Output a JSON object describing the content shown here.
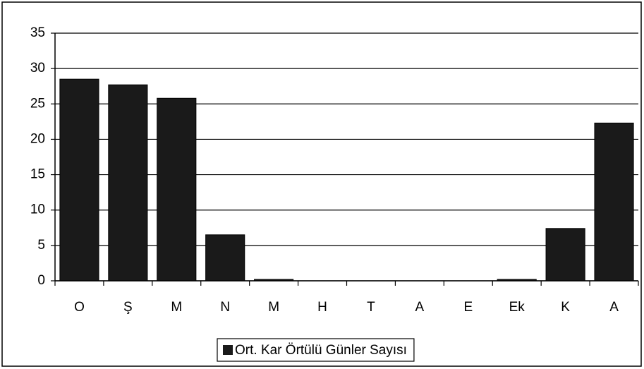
{
  "chart_data": {
    "type": "bar",
    "categories": [
      "O",
      "Ş",
      "M",
      "N",
      "M",
      "H",
      "T",
      "A",
      "E",
      "Ek",
      "K",
      "A"
    ],
    "series": [
      {
        "name": "Ort. Kar Örtülü Günler Sayısı",
        "color": "#1a1a1a",
        "values": [
          28.5,
          27.7,
          25.8,
          6.5,
          0.2,
          0,
          0,
          0,
          0,
          0.2,
          7.4,
          22.3
        ]
      }
    ],
    "ylim": [
      0,
      35
    ],
    "yticks": [
      0,
      5,
      10,
      15,
      20,
      25,
      30,
      35
    ],
    "grid": true,
    "legend": "bottom"
  }
}
